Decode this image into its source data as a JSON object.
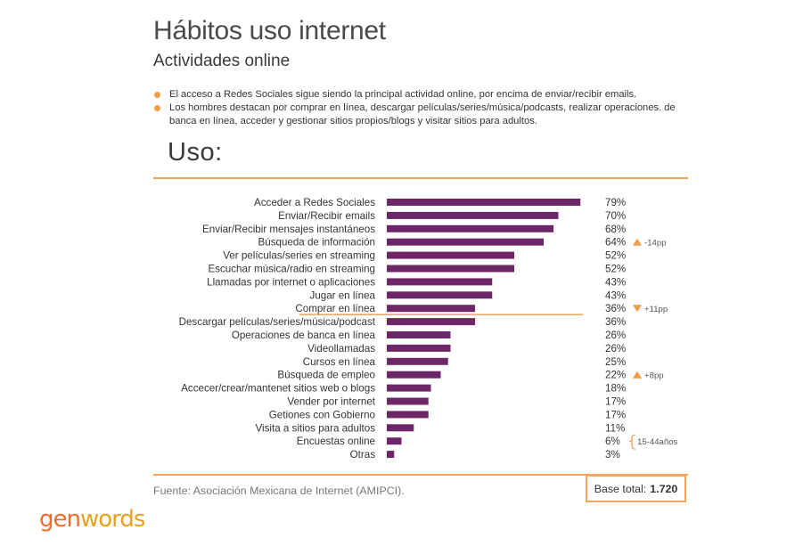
{
  "title": "Hábitos uso internet",
  "subtitle": "Actividades online",
  "bullets": [
    "El acceso a Redes Sociales sigue siendo la principal actividad online, por encima de enviar/recibir emails.",
    "Los hombres destacan por comprar en línea, descargar películas/series/música/podcasts, realizar operaciones. de banca en línea, acceder y gestionar sitios propios/blogs y visitar sitios para adultos."
  ],
  "section_title": "Uso:",
  "source": "Fuente: Asociación Mexicana de Internet (AMIPCI).",
  "base": {
    "label": "Base total:",
    "value": "1.720"
  },
  "logo": {
    "part1": "gen",
    "part2": "words"
  },
  "colors": {
    "bar": "#6d2668",
    "accent": "#f29a45",
    "text": "#3a3a3a"
  },
  "chart_data": {
    "type": "bar",
    "orientation": "horizontal",
    "categories": [
      "Acceder a Redes Sociales",
      "Enviar/Recibir emails",
      "Enviar/Recibir mensajes instantáneos",
      "Búsqueda de información",
      "Ver películas/series en streaming",
      "Escuchar música/radio en streaming",
      "Llamadas por internet o aplicaciones",
      "Jugar en línea",
      "Comprar en línea",
      "Descargar películas/series/música/podcast",
      "Operaciones de banca en línea",
      "Videollamadas",
      "Cursos en línea",
      "Búsqueda de empleo",
      "Accecer/crear/mantenet sitios web o blogs",
      "Vender por internet",
      "Getiones con Gobierno",
      "Visita a sitios para adultos",
      "Encuestas online",
      "Otras"
    ],
    "values": [
      79,
      70,
      68,
      64,
      52,
      52,
      43,
      43,
      36,
      36,
      26,
      26,
      25,
      22,
      18,
      17,
      17,
      11,
      6,
      3
    ],
    "value_labels": [
      "79%",
      "70%",
      "68%",
      "64%",
      "52%",
      "52%",
      "43%",
      "43%",
      "36%",
      "36%",
      "26%",
      "26%",
      "25%",
      "22%",
      "18%",
      "17%",
      "17%",
      "11%",
      "6%",
      "3%"
    ],
    "xlim": [
      0,
      100
    ],
    "annotations": [
      {
        "index": 3,
        "direction": "up",
        "text": "-14pp"
      },
      {
        "index": 8,
        "direction": "down",
        "text": "+11pp"
      },
      {
        "index": 13,
        "direction": "up",
        "text": "+8pp"
      },
      {
        "index": 18,
        "direction": "brace",
        "text": "15-44años"
      }
    ],
    "separator_after_index": 8
  }
}
